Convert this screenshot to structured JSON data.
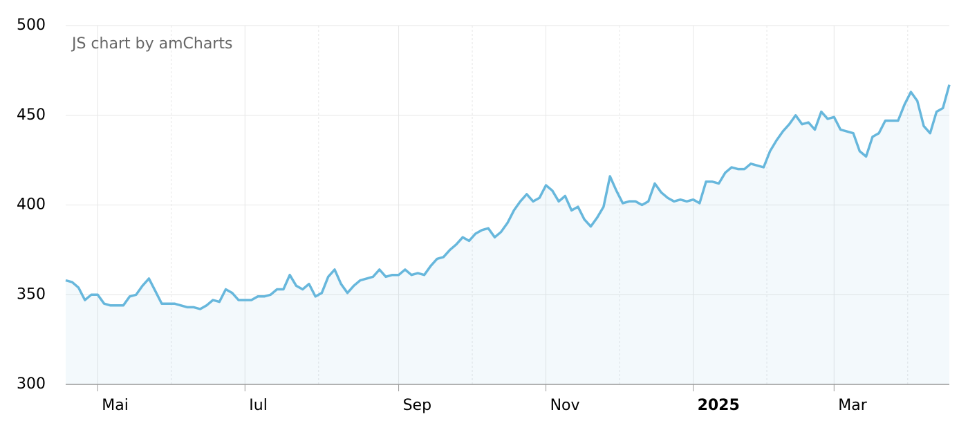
{
  "chart_data": {
    "type": "area",
    "annotation": "JS chart by amCharts",
    "categories": [
      null,
      null,
      null,
      null,
      null,
      "Mai",
      null,
      null,
      null,
      null,
      null,
      null,
      null,
      null,
      null,
      null,
      null,
      null,
      null,
      null,
      null,
      null,
      null,
      null,
      null,
      null,
      null,
      null,
      "Iul",
      null,
      null,
      null,
      null,
      null,
      null,
      null,
      null,
      null,
      null,
      null,
      null,
      null,
      null,
      null,
      null,
      null,
      null,
      null,
      null,
      null,
      null,
      null,
      "Sep",
      null,
      null,
      null,
      null,
      null,
      null,
      null,
      null,
      null,
      null,
      null,
      null,
      null,
      null,
      null,
      null,
      null,
      null,
      null,
      null,
      null,
      null,
      "Nov",
      null,
      null,
      null,
      null,
      null,
      null,
      null,
      null,
      null,
      null,
      null,
      null,
      null,
      null,
      null,
      null,
      null,
      null,
      null,
      null,
      null,
      null,
      "2025",
      null,
      null,
      null,
      null,
      null,
      null,
      null,
      null,
      null,
      null,
      null,
      null,
      null,
      null,
      null,
      null,
      null,
      null,
      null,
      null,
      null,
      "Mar",
      null,
      null,
      null,
      null,
      null,
      null,
      null,
      null,
      null,
      null,
      null,
      null,
      null,
      null,
      null,
      null,
      null,
      null
    ],
    "series": [
      {
        "name": null,
        "color": "#67b7dc",
        "values": [
          358,
          357,
          354,
          347,
          350,
          350,
          345,
          344,
          344,
          344,
          349,
          350,
          355,
          359,
          352,
          345,
          345,
          345,
          344,
          343,
          343,
          342,
          344,
          347,
          346,
          353,
          351,
          347,
          347,
          347,
          349,
          349,
          350,
          353,
          353,
          361,
          355,
          353,
          356,
          349,
          351,
          360,
          364,
          356,
          351,
          355,
          358,
          359,
          360,
          364,
          360,
          361,
          361,
          364,
          361,
          362,
          361,
          366,
          370,
          371,
          375,
          378,
          382,
          380,
          384,
          386,
          387,
          382,
          385,
          390,
          397,
          402,
          406,
          402,
          404,
          411,
          408,
          402,
          405,
          397,
          399,
          392,
          388,
          393,
          399,
          416,
          408,
          401,
          402,
          402,
          400,
          402,
          412,
          407,
          404,
          402,
          403,
          402,
          403,
          401,
          413,
          413,
          412,
          418,
          421,
          420,
          420,
          423,
          422,
          421,
          430,
          436,
          441,
          445,
          450,
          445,
          446,
          442,
          452,
          448,
          449,
          442,
          441,
          440,
          430,
          427,
          438,
          440,
          447,
          447,
          447,
          456,
          463,
          458,
          444,
          440,
          452,
          454,
          467
        ]
      }
    ],
    "ylim": [
      300,
      500
    ],
    "yticks": [
      300,
      350,
      400,
      450,
      500
    ],
    "grid": true
  }
}
